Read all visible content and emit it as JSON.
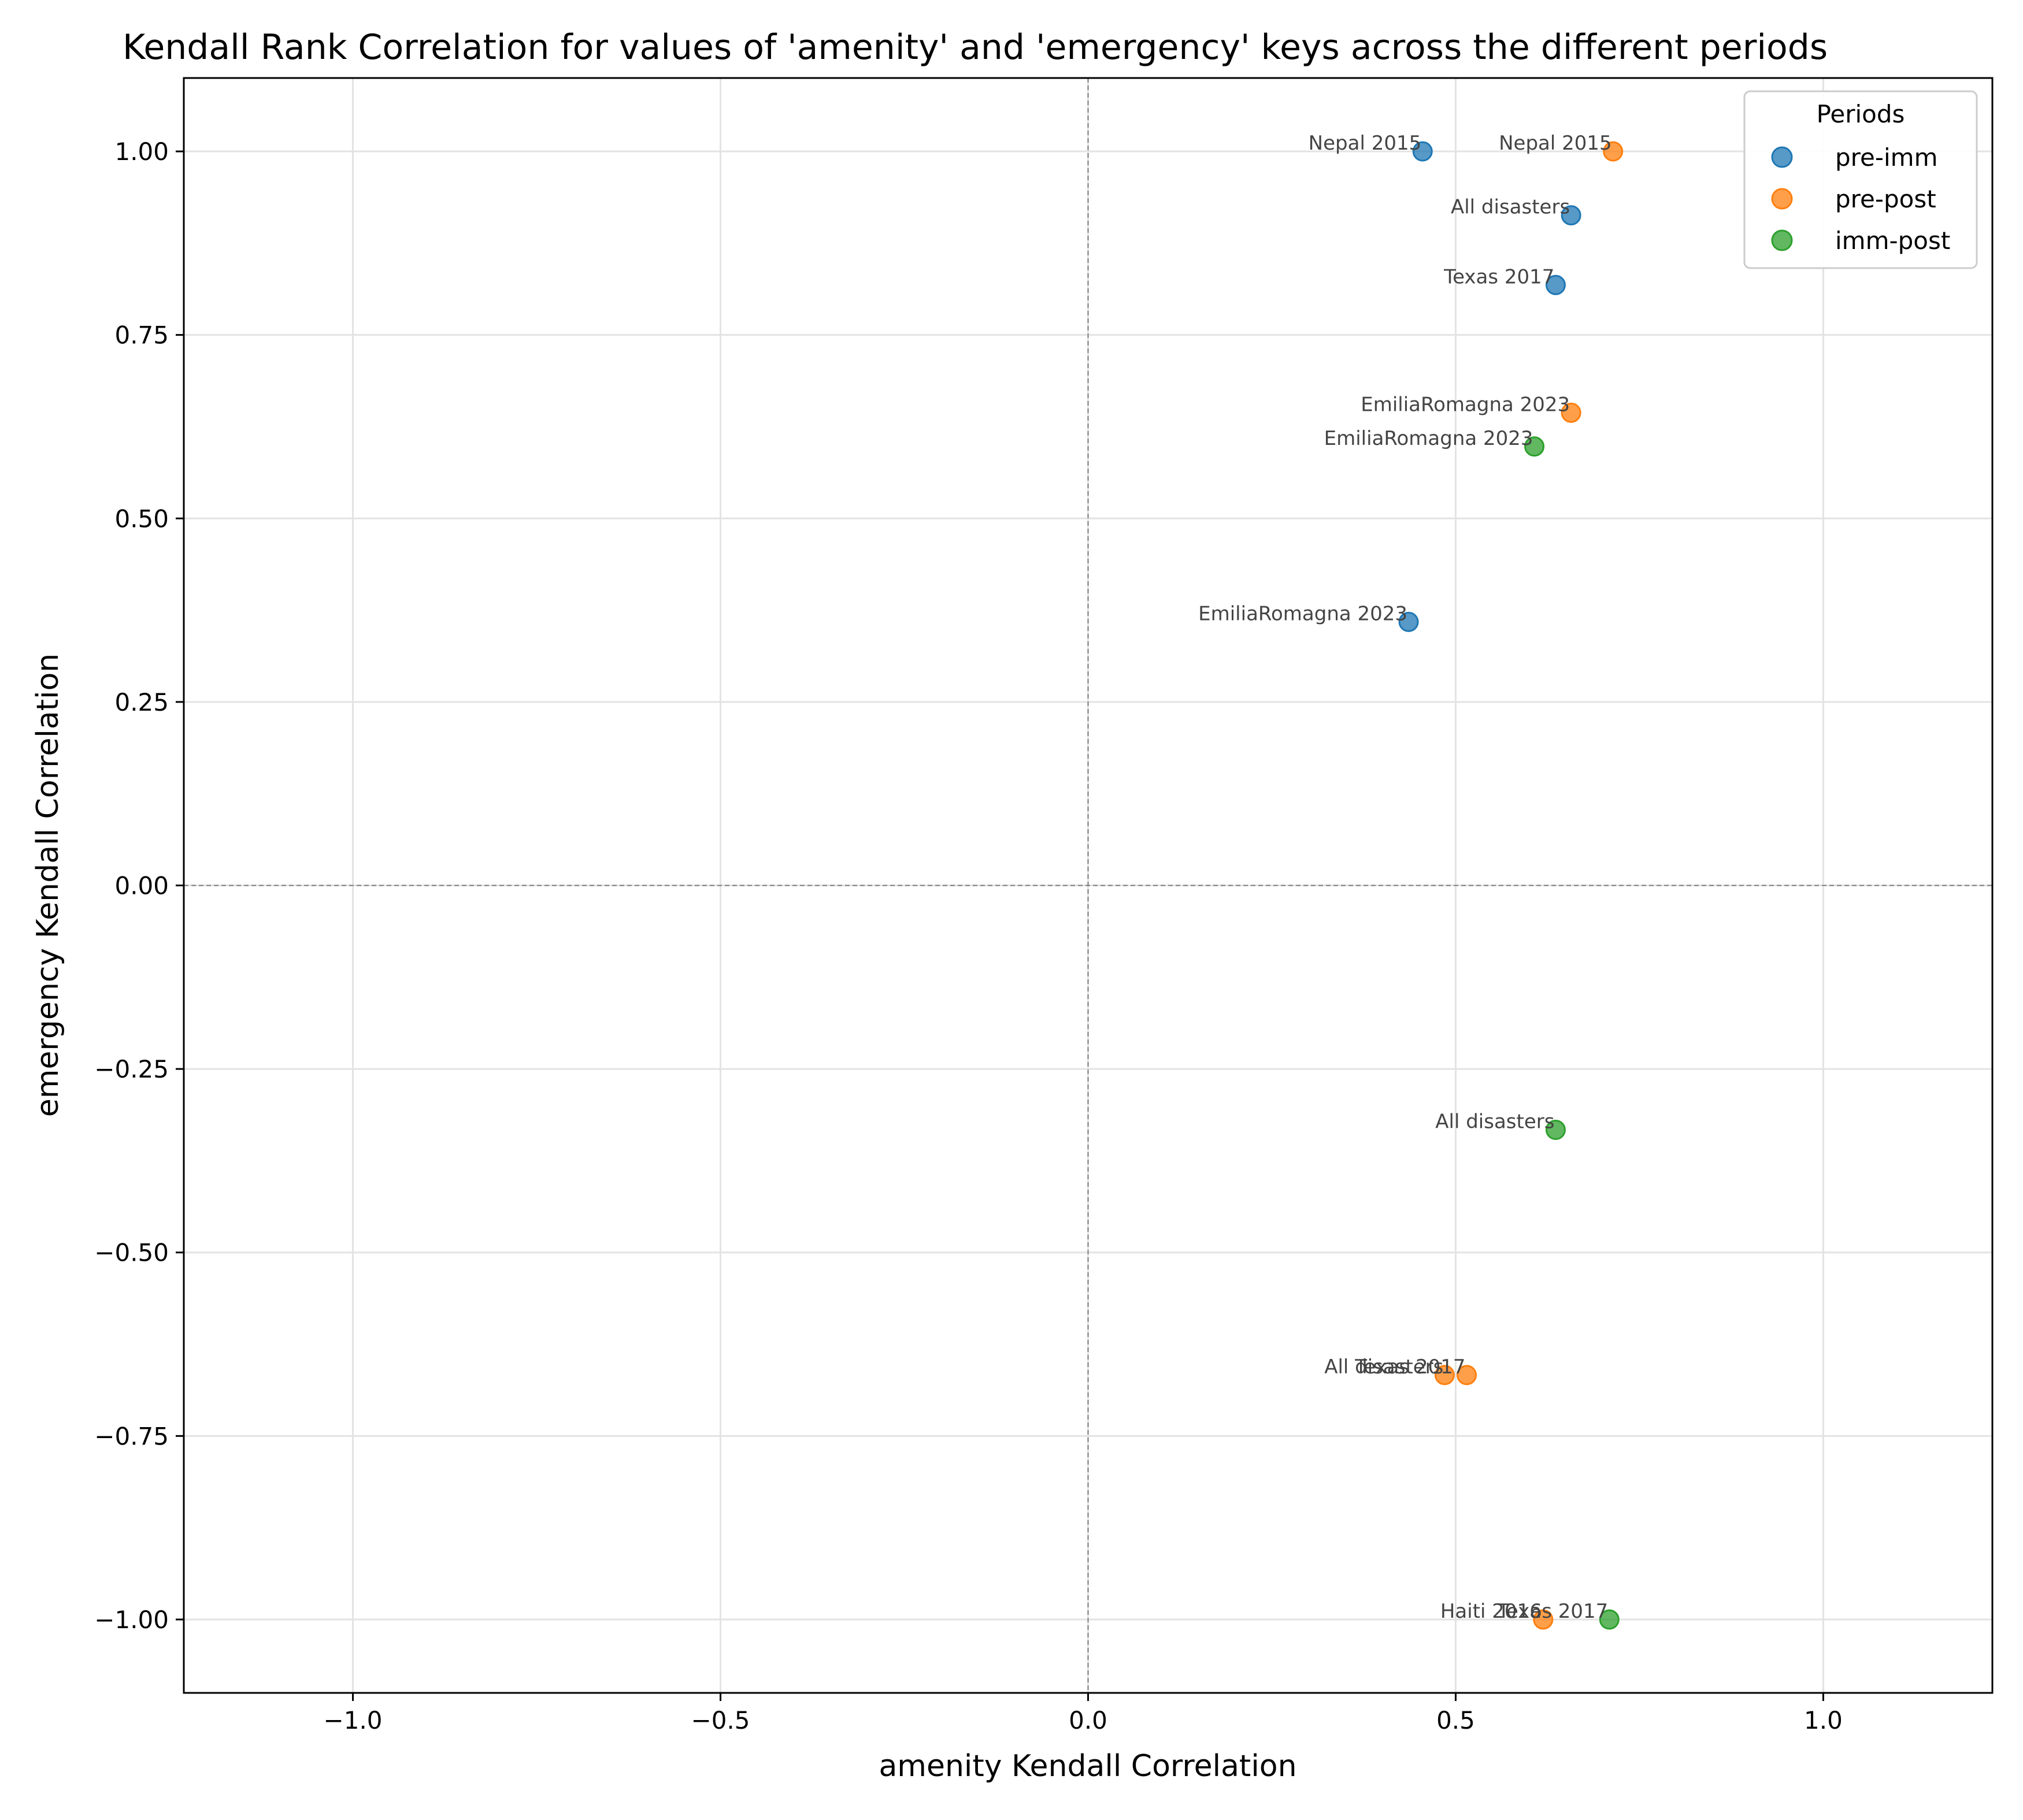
{
  "chart_data": {
    "type": "scatter",
    "title": "Kendall Rank Correlation for values of 'amenity' and 'emergency' keys across the different periods",
    "xlabel": "amenity Kendall Correlation",
    "ylabel": "emergency Kendall Correlation",
    "xlim": [
      -1.23,
      1.23
    ],
    "ylim": [
      -1.1,
      1.1
    ],
    "xticks": [
      -1.0,
      -0.5,
      0.0,
      0.5,
      1.0
    ],
    "xtick_labels": [
      "−1.0",
      "−0.5",
      "0.0",
      "0.5",
      "1.0"
    ],
    "yticks": [
      -1.0,
      -0.75,
      -0.5,
      -0.25,
      0.0,
      0.25,
      0.5,
      0.75,
      1.0
    ],
    "ytick_labels": [
      "−1.00",
      "−0.75",
      "−0.50",
      "−0.25",
      "0.00",
      "0.25",
      "0.50",
      "0.75",
      "1.00"
    ],
    "grid": true,
    "reference_lines": {
      "x": 0,
      "y": 0
    },
    "legend": {
      "title": "Periods",
      "placement": "top-right"
    },
    "series": [
      {
        "name": "pre-imm",
        "color": "#1f77b4",
        "points": [
          {
            "x": 0.455,
            "y": 1.0,
            "label": "Nepal 2015"
          },
          {
            "x": 0.657,
            "y": 0.913,
            "label": "All disasters"
          },
          {
            "x": 0.636,
            "y": 0.818,
            "label": "Texas 2017"
          },
          {
            "x": 0.436,
            "y": 0.359,
            "label": "EmiliaRomagna 2023"
          }
        ]
      },
      {
        "name": "pre-post",
        "color": "#ff7f0e",
        "points": [
          {
            "x": 0.714,
            "y": 1.0,
            "label": "Nepal 2015"
          },
          {
            "x": 0.657,
            "y": 0.644,
            "label": "EmiliaRomagna 2023"
          },
          {
            "x": 0.485,
            "y": -0.667,
            "label": "All disasters"
          },
          {
            "x": 0.515,
            "y": -0.667,
            "label": "Texas 2017"
          },
          {
            "x": 0.619,
            "y": -1.0,
            "label": "Haiti 2016"
          }
        ]
      },
      {
        "name": "imm-post",
        "color": "#2ca02c",
        "points": [
          {
            "x": 0.607,
            "y": 0.598,
            "label": "EmiliaRomagna 2023"
          },
          {
            "x": 0.636,
            "y": -0.333,
            "label": "All disasters"
          },
          {
            "x": 0.709,
            "y": -1.0,
            "label": "Texas 2017"
          }
        ]
      }
    ]
  }
}
